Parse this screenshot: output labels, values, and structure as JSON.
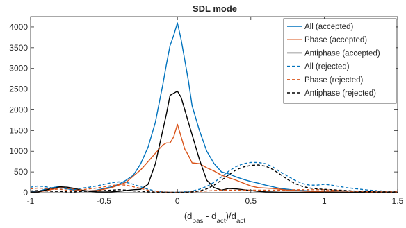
{
  "chart_data": {
    "type": "line",
    "title": "SDL mode",
    "xlabel_parts": [
      "(d",
      "pas",
      " - d",
      "act",
      ")/d",
      "act"
    ],
    "ylabel": "",
    "xlim": [
      -1,
      1.5
    ],
    "ylim": [
      0,
      4250
    ],
    "xticks": [
      -1,
      -0.5,
      0,
      0.5,
      1,
      1.5
    ],
    "xtick_labels": [
      "-1",
      "-0.5",
      "0",
      "0.5",
      "1",
      "1.5"
    ],
    "yticks": [
      0,
      500,
      1000,
      1500,
      2000,
      2500,
      3000,
      3500,
      4000
    ],
    "ytick_labels": [
      "0",
      "500",
      "1000",
      "1500",
      "2000",
      "2500",
      "3000",
      "3500",
      "4000"
    ],
    "grid": false,
    "legend_position": "top-right",
    "colors": {
      "all": "#0072BD",
      "phase": "#D95319",
      "antiphase": "#000000"
    },
    "series": [
      {
        "name": "All (accepted)",
        "color": "#0072BD",
        "dash": "solid",
        "x": [
          -1,
          -0.95,
          -0.9,
          -0.85,
          -0.8,
          -0.75,
          -0.7,
          -0.65,
          -0.6,
          -0.55,
          -0.5,
          -0.45,
          -0.4,
          -0.35,
          -0.3,
          -0.25,
          -0.2,
          -0.15,
          -0.1,
          -0.075,
          -0.05,
          -0.025,
          0,
          0.025,
          0.05,
          0.075,
          0.1,
          0.15,
          0.2,
          0.25,
          0.3,
          0.35,
          0.4,
          0.45,
          0.5,
          0.55,
          0.6,
          0.65,
          0.7,
          0.75,
          0.8,
          0.85,
          0.9,
          0.95,
          1,
          1.05,
          1.1,
          1.15,
          1.2,
          1.25,
          1.3,
          1.35,
          1.4,
          1.45,
          1.5
        ],
        "y": [
          20,
          30,
          80,
          120,
          150,
          90,
          60,
          40,
          40,
          60,
          100,
          140,
          200,
          300,
          420,
          700,
          1100,
          1700,
          2600,
          3100,
          3550,
          3800,
          4100,
          3700,
          3200,
          2700,
          2100,
          1500,
          1000,
          700,
          500,
          450,
          380,
          320,
          270,
          230,
          180,
          140,
          100,
          80,
          60,
          50,
          40,
          30,
          20,
          20,
          15,
          15,
          10,
          10,
          10,
          10,
          10,
          10,
          10
        ]
      },
      {
        "name": "Phase (accepted)",
        "color": "#D95319",
        "dash": "solid",
        "x": [
          -1,
          -0.95,
          -0.9,
          -0.85,
          -0.8,
          -0.75,
          -0.7,
          -0.65,
          -0.6,
          -0.55,
          -0.5,
          -0.45,
          -0.4,
          -0.35,
          -0.3,
          -0.25,
          -0.2,
          -0.15,
          -0.1,
          -0.075,
          -0.05,
          -0.025,
          0,
          0.025,
          0.05,
          0.075,
          0.1,
          0.15,
          0.2,
          0.25,
          0.3,
          0.35,
          0.4,
          0.45,
          0.5,
          0.55,
          0.6,
          0.65,
          0.7,
          0.75,
          0.8,
          0.85,
          0.9,
          0.95,
          1,
          1.05,
          1.1,
          1.15,
          1.2,
          1.25,
          1.3,
          1.35,
          1.4,
          1.45,
          1.5
        ],
        "y": [
          10,
          20,
          40,
          80,
          120,
          100,
          80,
          50,
          40,
          50,
          80,
          120,
          180,
          250,
          400,
          550,
          750,
          950,
          1150,
          1200,
          1200,
          1350,
          1650,
          1350,
          1050,
          900,
          720,
          700,
          600,
          520,
          420,
          360,
          300,
          230,
          160,
          120,
          110,
          100,
          80,
          60,
          50,
          40,
          30,
          25,
          20,
          20,
          15,
          15,
          10,
          10,
          10,
          10,
          10,
          10,
          10
        ]
      },
      {
        "name": "Antiphase (accepted)",
        "color": "#000000",
        "dash": "solid",
        "x": [
          -1,
          -0.95,
          -0.9,
          -0.85,
          -0.8,
          -0.75,
          -0.7,
          -0.65,
          -0.6,
          -0.55,
          -0.5,
          -0.45,
          -0.4,
          -0.35,
          -0.3,
          -0.25,
          -0.2,
          -0.15,
          -0.1,
          -0.075,
          -0.05,
          -0.025,
          0,
          0.025,
          0.05,
          0.075,
          0.1,
          0.15,
          0.2,
          0.25,
          0.3,
          0.35,
          0.4,
          0.45,
          0.5,
          0.55,
          0.6,
          0.65,
          0.7,
          0.75,
          0.8,
          0.85,
          0.9,
          0.95,
          1,
          1.05,
          1.1,
          1.15,
          1.2,
          1.25,
          1.3,
          1.35,
          1.4,
          1.45,
          1.5
        ],
        "y": [
          10,
          15,
          60,
          100,
          140,
          130,
          100,
          60,
          30,
          20,
          15,
          20,
          30,
          50,
          70,
          80,
          200,
          700,
          1500,
          1900,
          2350,
          2400,
          2450,
          2300,
          2000,
          1700,
          1400,
          800,
          300,
          120,
          60,
          100,
          90,
          70,
          50,
          30,
          20,
          15,
          10,
          10,
          10,
          10,
          10,
          10,
          10,
          10,
          10,
          10,
          10,
          10,
          10,
          10,
          10,
          10,
          10
        ]
      },
      {
        "name": "All (rejected)",
        "color": "#0072BD",
        "dash": "dashed",
        "x": [
          -1,
          -0.95,
          -0.9,
          -0.85,
          -0.8,
          -0.75,
          -0.7,
          -0.65,
          -0.6,
          -0.55,
          -0.5,
          -0.45,
          -0.4,
          -0.35,
          -0.3,
          -0.25,
          -0.2,
          -0.15,
          -0.1,
          -0.05,
          0,
          0.05,
          0.1,
          0.15,
          0.2,
          0.25,
          0.3,
          0.35,
          0.4,
          0.45,
          0.5,
          0.55,
          0.6,
          0.65,
          0.7,
          0.75,
          0.8,
          0.85,
          0.9,
          0.95,
          1,
          1.05,
          1.1,
          1.15,
          1.2,
          1.25,
          1.3,
          1.35,
          1.4,
          1.45,
          1.5
        ],
        "y": [
          130,
          160,
          140,
          110,
          110,
          90,
          70,
          110,
          130,
          160,
          200,
          240,
          260,
          250,
          200,
          140,
          80,
          40,
          20,
          10,
          10,
          20,
          40,
          80,
          150,
          250,
          380,
          520,
          630,
          700,
          730,
          730,
          700,
          620,
          500,
          400,
          300,
          220,
          180,
          180,
          200,
          180,
          150,
          120,
          100,
          80,
          60,
          50,
          40,
          30,
          30
        ]
      },
      {
        "name": "Phase (rejected)",
        "color": "#D95319",
        "dash": "dashed",
        "x": [
          -1,
          -0.95,
          -0.9,
          -0.85,
          -0.8,
          -0.75,
          -0.7,
          -0.65,
          -0.6,
          -0.55,
          -0.5,
          -0.45,
          -0.4,
          -0.35,
          -0.3,
          -0.25,
          -0.2,
          -0.15,
          -0.1,
          -0.05,
          0,
          0.05,
          0.1,
          0.15,
          0.2,
          0.25,
          0.3,
          0.35,
          0.4,
          0.45,
          0.5,
          0.55,
          0.6,
          0.65,
          0.7,
          0.75,
          0.8,
          0.85,
          0.9,
          0.95,
          1,
          1.05,
          1.1,
          1.15,
          1.2,
          1.25,
          1.3,
          1.35,
          1.4,
          1.45,
          1.5
        ],
        "y": [
          90,
          110,
          100,
          80,
          80,
          60,
          50,
          70,
          90,
          110,
          140,
          170,
          190,
          180,
          140,
          100,
          60,
          30,
          15,
          10,
          10,
          10,
          20,
          30,
          40,
          50,
          60,
          60,
          60,
          60,
          60,
          60,
          60,
          60,
          60,
          60,
          70,
          70,
          70,
          70,
          70,
          60,
          50,
          40,
          30,
          30,
          20,
          20,
          20,
          20,
          20
        ]
      },
      {
        "name": "Antiphase (rejected)",
        "color": "#000000",
        "dash": "dashed",
        "x": [
          -1,
          -0.95,
          -0.9,
          -0.85,
          -0.8,
          -0.75,
          -0.7,
          -0.65,
          -0.6,
          -0.55,
          -0.5,
          -0.45,
          -0.4,
          -0.35,
          -0.3,
          -0.25,
          -0.2,
          -0.15,
          -0.1,
          -0.05,
          0,
          0.05,
          0.1,
          0.15,
          0.2,
          0.25,
          0.3,
          0.35,
          0.4,
          0.45,
          0.5,
          0.55,
          0.6,
          0.65,
          0.7,
          0.75,
          0.8,
          0.85,
          0.9,
          0.95,
          1,
          1.05,
          1.1,
          1.15,
          1.2,
          1.25,
          1.3,
          1.35,
          1.4,
          1.45,
          1.5
        ],
        "y": [
          40,
          50,
          40,
          30,
          30,
          20,
          20,
          30,
          30,
          40,
          50,
          60,
          70,
          60,
          40,
          30,
          20,
          10,
          10,
          10,
          10,
          10,
          20,
          40,
          90,
          180,
          300,
          430,
          550,
          620,
          660,
          670,
          640,
          560,
          440,
          320,
          220,
          150,
          110,
          90,
          80,
          70,
          60,
          50,
          40,
          30,
          25,
          20,
          20,
          15,
          15
        ]
      }
    ]
  }
}
